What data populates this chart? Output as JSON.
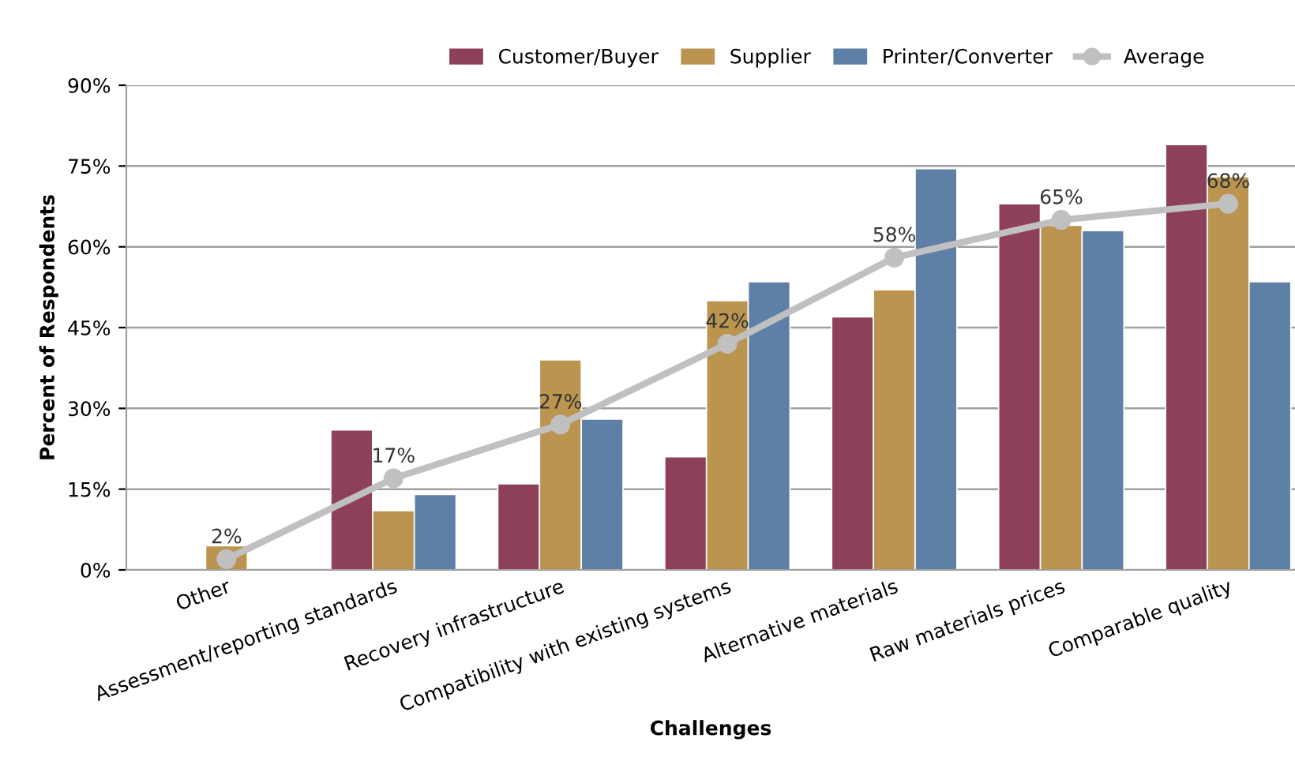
{
  "chart_data": {
    "type": "bar",
    "xlabel": "Challenges",
    "ylabel": "Percent of Respondents",
    "categories": [
      "Other",
      "Assessment/reporting standards",
      "Recovery infrastructure",
      "Compatibility with existing systems",
      "Alternative materials",
      "Raw materials prices",
      "Comparable quality"
    ],
    "series": [
      {
        "name": "Customer/Buyer",
        "color": "#8e4058",
        "values": [
          null,
          26,
          16,
          21,
          47,
          68,
          79
        ]
      },
      {
        "name": "Supplier",
        "color": "#bb9450",
        "values": [
          4.5,
          11,
          39,
          50,
          52,
          64,
          73
        ]
      },
      {
        "name": "Printer/Converter",
        "color": "#5e7fa6",
        "values": [
          null,
          14,
          28,
          53.5,
          74.5,
          63,
          53.5
        ]
      },
      {
        "name": "Average",
        "color": "#c0c0c0",
        "type": "line",
        "marker": "circle",
        "values": [
          2,
          17,
          27,
          42,
          58,
          65,
          68
        ],
        "value_labels": [
          "2%",
          "17%",
          "27%",
          "42%",
          "58%",
          "65%",
          "68%"
        ]
      }
    ],
    "ylim": [
      0,
      90
    ],
    "yticks": [
      {
        "value": 0,
        "label": "0%"
      },
      {
        "value": 15,
        "label": "15%"
      },
      {
        "value": 30,
        "label": "30%"
      },
      {
        "value": 45,
        "label": "45%"
      },
      {
        "value": 60,
        "label": "60%"
      },
      {
        "value": 75,
        "label": "75%"
      },
      {
        "value": 90,
        "label": "90%"
      }
    ],
    "grid": "y",
    "legend": "top"
  }
}
